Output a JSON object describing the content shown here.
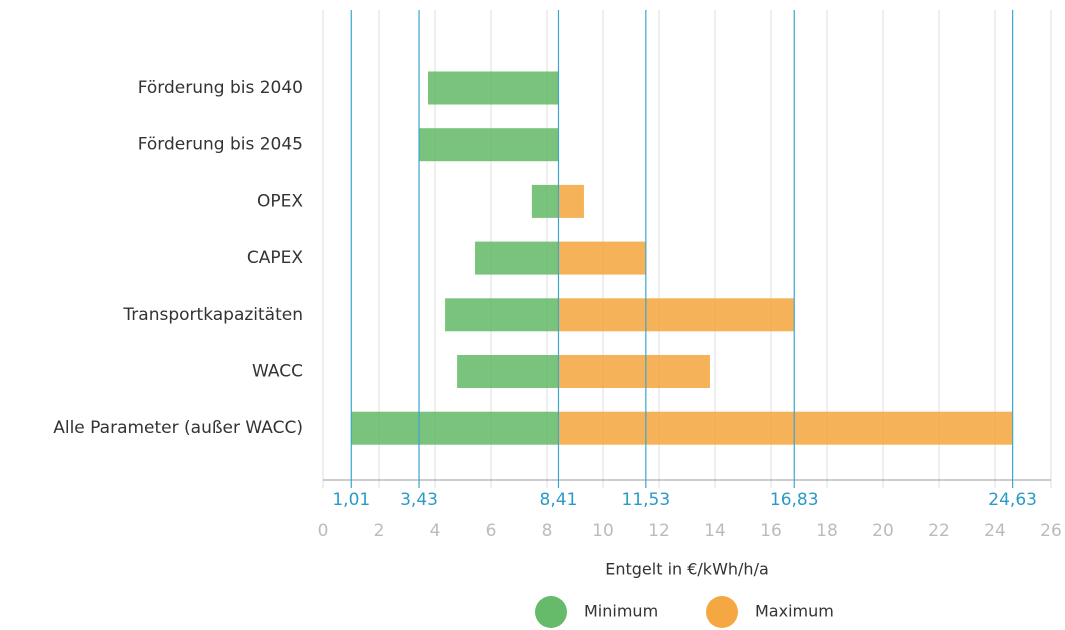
{
  "chart_data": {
    "type": "tornado",
    "categories": [
      "Förderung bis 2040",
      "Förderung bis 2045",
      "OPEX",
      "CAPEX",
      "Transportkapazitäten",
      "WACC",
      "Alle Parameter (außer WACC)"
    ],
    "base": 8.41,
    "series": [
      {
        "name": "Minimum",
        "color": "#66bb6a",
        "values": [
          3.75,
          3.43,
          7.46,
          5.43,
          4.36,
          4.79,
          1.01
        ]
      },
      {
        "name": "Maximum",
        "color": "#f5a742",
        "values": [
          null,
          null,
          9.32,
          11.53,
          16.83,
          13.82,
          24.63
        ]
      }
    ],
    "xlim": [
      0,
      26
    ],
    "xticks": [
      0,
      2,
      4,
      6,
      8,
      10,
      12,
      14,
      16,
      18,
      20,
      22,
      24,
      26
    ],
    "highlight_ticks": [
      {
        "value": 1.01,
        "label": "1,01"
      },
      {
        "value": 3.43,
        "label": "3,43"
      },
      {
        "value": 8.41,
        "label": "8,41"
      },
      {
        "value": 11.53,
        "label": "11,53"
      },
      {
        "value": 16.83,
        "label": "16,83"
      },
      {
        "value": 24.63,
        "label": "24,63"
      }
    ],
    "xlabel": "Entgelt in €/kWh/h/a",
    "grid": true
  }
}
